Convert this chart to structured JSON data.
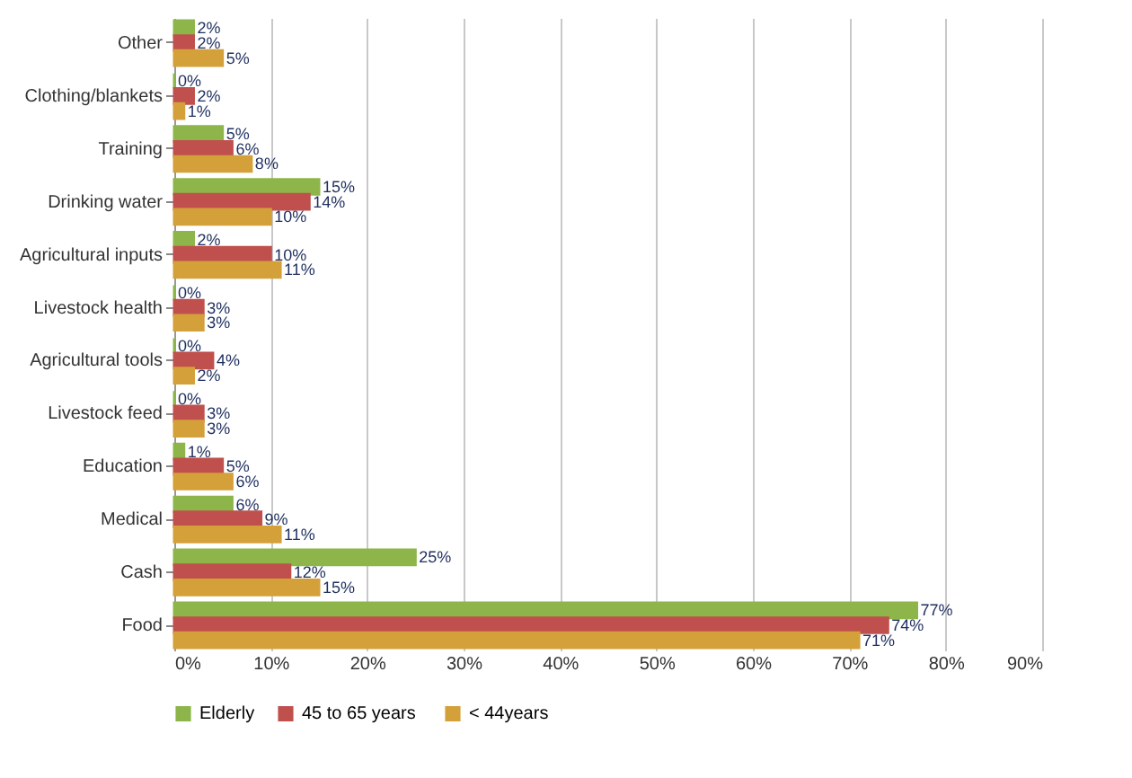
{
  "chart_data": {
    "type": "bar",
    "orientation": "horizontal",
    "categories": [
      "Other",
      "Clothing/blankets",
      "Training",
      "Drinking water",
      "Agricultural inputs",
      "Livestock health",
      "Agricultural tools",
      "Livestock feed",
      "Education",
      "Medical",
      "Cash",
      "Food"
    ],
    "series": [
      {
        "name": "Elderly",
        "color": "#8db54a",
        "values": [
          2,
          0,
          5,
          15,
          2,
          0,
          0,
          0,
          1,
          6,
          25,
          77
        ],
        "value_labels": [
          "2%",
          "0%",
          "5%",
          "15%",
          "2%",
          "0%",
          "0%",
          "0%",
          "1%",
          "6%",
          "25%",
          "77%"
        ]
      },
      {
        "name": "45 to 65  years",
        "color": "#c0504d",
        "values": [
          2,
          2,
          6,
          14,
          10,
          3,
          4,
          3,
          5,
          9,
          12,
          74
        ],
        "value_labels": [
          "2%",
          "2%",
          "6%",
          "14%",
          "10%",
          "3%",
          "4%",
          "3%",
          "5%",
          "9%",
          "12%",
          "74%"
        ]
      },
      {
        "name": "< 44years",
        "color": "#d4a03a",
        "values": [
          5,
          1,
          8,
          10,
          11,
          3,
          2,
          3,
          6,
          11,
          15,
          71
        ],
        "value_labels": [
          "5%",
          "1%",
          "8%",
          "10%",
          "11%",
          "3%",
          "2%",
          "3%",
          "6%",
          "11%",
          "15%",
          "71%"
        ]
      }
    ],
    "xlim": [
      0,
      90
    ],
    "xticks": [
      {
        "value": 0,
        "label": "0%"
      },
      {
        "value": 10,
        "label": "10%"
      },
      {
        "value": 20,
        "label": "20%"
      },
      {
        "value": 30,
        "label": "30%"
      },
      {
        "value": 40,
        "label": "40%"
      },
      {
        "value": 50,
        "label": "50%"
      },
      {
        "value": 60,
        "label": "60%"
      },
      {
        "value": 70,
        "label": "70%"
      },
      {
        "value": 80,
        "label": "80%"
      },
      {
        "value": 90,
        "label": "90%"
      }
    ],
    "grid": "x",
    "legend": "bottom"
  }
}
